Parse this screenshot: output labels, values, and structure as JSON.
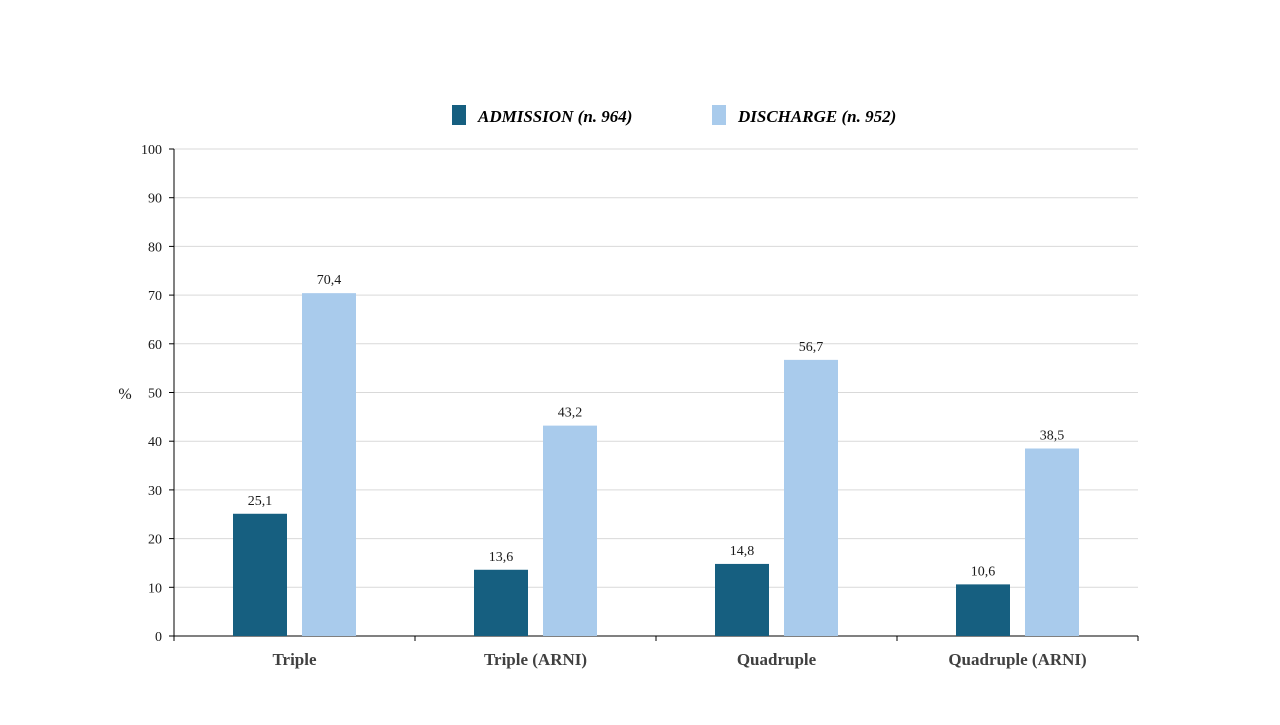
{
  "chart_data": {
    "type": "bar",
    "title": "",
    "xlabel": "",
    "ylabel": "%",
    "ylim": [
      0,
      100
    ],
    "yticks": [
      0,
      10,
      20,
      30,
      40,
      50,
      60,
      70,
      80,
      90,
      100
    ],
    "grid": true,
    "legend_position": "top-center",
    "categories": [
      "Triple",
      "Triple (ARNI)",
      "Quadruple",
      "Quadruple (ARNI)"
    ],
    "series": [
      {
        "name": "ADMISSION (n. 964)",
        "color": "#165f80",
        "values": [
          25.1,
          13.6,
          14.8,
          10.6
        ],
        "labels": [
          "25,1",
          "13,6",
          "14,8",
          "10,6"
        ]
      },
      {
        "name": "DISCHARGE (n. 952)",
        "color": "#a9cbec",
        "values": [
          70.4,
          43.2,
          56.7,
          38.5
        ],
        "labels": [
          "70,4",
          "43,2",
          "56,7",
          "38,5"
        ]
      }
    ]
  }
}
